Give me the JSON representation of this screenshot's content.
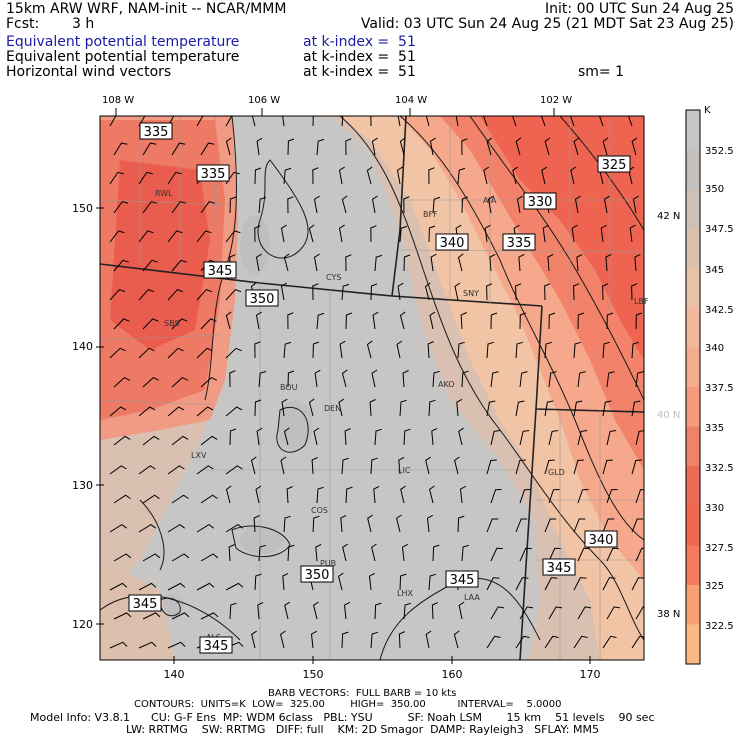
{
  "header": {
    "model": "15km ARW WRF, NAM-init -- NCAR/MMM",
    "init": "Init: 00 UTC Sun 24 Aug 25",
    "fcst_label": "Fcst:",
    "fcst_value": "3 h",
    "valid": "Valid: 03 UTC Sun 24 Aug 25 (21 MDT Sat 23 Aug 25)",
    "fields": [
      {
        "name": "Equivalent potential temperature",
        "level": "at k-index =  51"
      },
      {
        "name": "Equivalent potential temperature",
        "level": "at k-index =  51"
      },
      {
        "name": "Horizontal wind vectors",
        "level": "at k-index =  51"
      }
    ],
    "smoothing": "sm= 1",
    "colors": {
      "first_field": "#1a1aa6"
    }
  },
  "map": {
    "top_lon_labels": [
      "108 W",
      "106 W",
      "104 W",
      "102 W"
    ],
    "left_y_ticks": [
      "150",
      "140",
      "130",
      "120"
    ],
    "bottom_x_ticks": [
      "140",
      "150",
      "160",
      "170"
    ],
    "right_lat_labels": [
      "42 N",
      "40 N",
      "38 N"
    ],
    "stations": [
      "RWL",
      "SBS",
      "CYS",
      "BFF",
      "AIA",
      "SNY",
      "LBF",
      "BOU",
      "DEN",
      "AKO",
      "LXV",
      "LIC",
      "GLD",
      "COS",
      "PUB",
      "LHX",
      "LAA",
      "ALS"
    ],
    "contour_labels": [
      "335",
      "335",
      "325",
      "330",
      "340",
      "335",
      "345",
      "350",
      "340",
      "345",
      "345",
      "350",
      "345",
      "345"
    ]
  },
  "colorbar": {
    "unit": "K",
    "labels": [
      "352.5",
      "350",
      "347.5",
      "345",
      "342.5",
      "340",
      "337.5",
      "335",
      "332.5",
      "330",
      "327.5",
      "325",
      "322.5"
    ],
    "colors": [
      "#c6c6c6",
      "#c4c0be",
      "#cdc0b6",
      "#dbc2ae",
      "#e8c1a6",
      "#f2b99e",
      "#f6ab8e",
      "#f59a7d",
      "#f1826a",
      "#ee6b58",
      "#f0664f",
      "#f47a5b",
      "#f89f74",
      "#fbb882"
    ]
  },
  "footer": {
    "line1": "BARB VECTORS:  FULL BARB = 10 kts",
    "line2": "CONTOURS:  UNITS=K  LOW=  325.00        HIGH=  350.00          INTERVAL=    5.0000",
    "line3": "Model Info: V3.8.1      CU: G-F Ens  MP: WDM 6class   PBL: YSU          SF: Noah LSM       15 km    51 levels    90 sec",
    "line4": "LW: RRTMG    SW: RRTMG   DIFF: full    KM: 2D Smagor  DAMP: Rayleigh3   SFLAY: MM5"
  }
}
